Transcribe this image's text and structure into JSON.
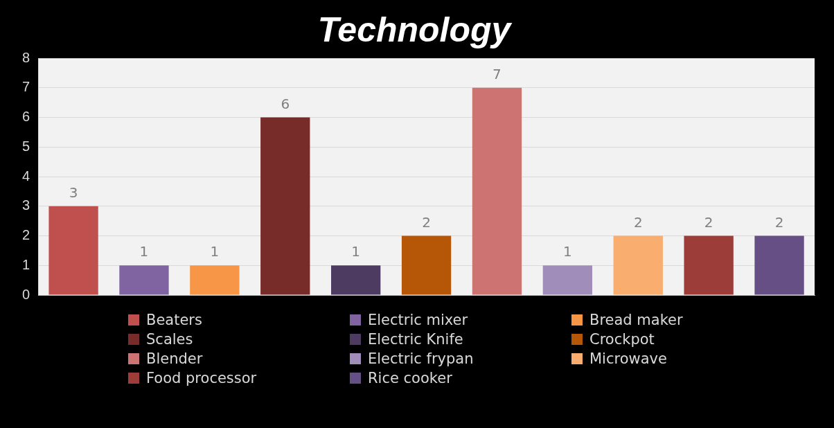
{
  "chart_data": {
    "type": "bar",
    "title": "Technology",
    "categories": [
      null,
      null,
      null,
      null,
      null,
      null,
      null,
      null,
      null,
      null,
      null
    ],
    "series": [
      {
        "name": "Beaters",
        "color": "#c0504d",
        "values": [
          3,
          null,
          null,
          null,
          null,
          null,
          null,
          null,
          null,
          null,
          null
        ]
      },
      {
        "name": "Electric mixer",
        "color": "#8064a2",
        "values": [
          null,
          1,
          null,
          null,
          null,
          null,
          null,
          null,
          null,
          null,
          null
        ]
      },
      {
        "name": "Bread maker",
        "color": "#f79646",
        "values": [
          null,
          null,
          1,
          null,
          null,
          null,
          null,
          null,
          null,
          null,
          null
        ]
      },
      {
        "name": "Scales",
        "color": "#772c2a",
        "values": [
          null,
          null,
          null,
          6,
          null,
          null,
          null,
          null,
          null,
          null,
          null
        ]
      },
      {
        "name": "Electric Knife",
        "color": "#4d3b62",
        "values": [
          null,
          null,
          null,
          null,
          1,
          null,
          null,
          null,
          null,
          null,
          null
        ]
      },
      {
        "name": "Crockpot",
        "color": "#b65708",
        "values": [
          null,
          null,
          null,
          null,
          null,
          2,
          null,
          null,
          null,
          null,
          null
        ]
      },
      {
        "name": "Blender",
        "color": "#cd7371",
        "values": [
          null,
          null,
          null,
          null,
          null,
          null,
          7,
          null,
          null,
          null,
          null
        ]
      },
      {
        "name": "Electric frypan",
        "color": "#a18db9",
        "values": [
          null,
          null,
          null,
          null,
          null,
          null,
          null,
          1,
          null,
          null,
          null
        ]
      },
      {
        "name": "Microwave",
        "color": "#f9ad6f",
        "values": [
          null,
          null,
          null,
          null,
          null,
          null,
          null,
          null,
          2,
          null,
          null
        ]
      },
      {
        "name": "Food processor",
        "color": "#9c3d3a",
        "values": [
          null,
          null,
          null,
          null,
          null,
          null,
          null,
          null,
          null,
          2,
          null
        ]
      },
      {
        "name": "Rice cooker",
        "color": "#664f84",
        "values": [
          null,
          null,
          null,
          null,
          null,
          null,
          null,
          null,
          null,
          null,
          2
        ]
      }
    ],
    "ylim": [
      0,
      8
    ],
    "yticks": [
      0,
      1,
      2,
      3,
      4,
      5,
      6,
      7,
      8
    ],
    "grid": "y",
    "data_labels": true,
    "legend": "bottom",
    "tick_labels": "y"
  }
}
